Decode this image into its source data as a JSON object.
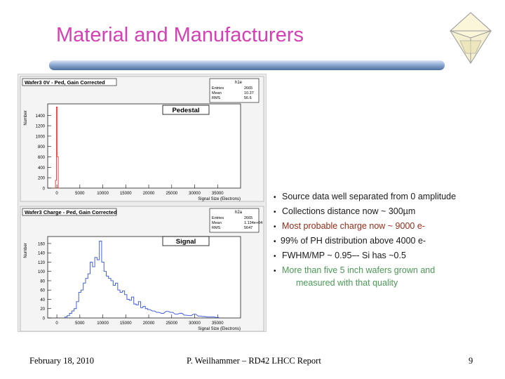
{
  "slide": {
    "title": "Material and Manufacturers",
    "bullets": [
      {
        "text": "Source data well separated from 0 amplitude",
        "color": "#1a1a1a"
      },
      {
        "text": "Collections distance now ~ 300µm",
        "color": "#1a1a1a"
      },
      {
        "text": "Most probable charge now ~ 9000 e-",
        "color": "#9a2a16"
      },
      {
        "text": "99% of PH distribution above 4000 e-",
        "color": "#1a1a1a"
      },
      {
        "text": "FWHM/MP ~ 0.95–- Si has ~0.5",
        "color": "#1a1a1a"
      },
      {
        "text": "More than five 5 inch wafers grown and",
        "text2": "measured with that quality",
        "color": "#4a9a55"
      }
    ],
    "footer": {
      "date": "February 18, 2010",
      "center": "P. Weilhammer – RD42 LHCC Report",
      "page": "9"
    }
  },
  "chart_data": [
    {
      "type": "bar",
      "title": "Wafer3 0V - Ped, Gain Corrected",
      "annotation": "Pedestal",
      "xlabel": "Signal Size (Electrons)",
      "ylabel": "Number",
      "xlim": [
        -2000,
        40000
      ],
      "ylim": [
        0,
        1620
      ],
      "xticks": [
        0,
        5000,
        10000,
        15000,
        20000,
        25000,
        30000,
        35000
      ],
      "yticks": [
        0,
        200,
        400,
        600,
        800,
        1000,
        1200,
        1400
      ],
      "stats": {
        "name": "h1e",
        "labels": [
          "Entries",
          "Mean",
          "RMS"
        ],
        "values": [
          "2665",
          "10.37",
          "56.6"
        ]
      },
      "series": [
        {
          "color": "#e03030",
          "x": [
            -400,
            -200,
            0,
            200,
            400
          ],
          "y": [
            0,
            150,
            1560,
            600,
            0
          ]
        }
      ]
    },
    {
      "type": "bar",
      "title": "Wafer3 Charge - Ped, Gain Corrected",
      "annotation": "Signal",
      "xlabel": "Signal Size (Electrons)",
      "ylabel": "Number",
      "xlim": [
        -2000,
        40000
      ],
      "ylim": [
        0,
        175
      ],
      "xticks": [
        0,
        5000,
        10000,
        15000,
        20000,
        25000,
        30000,
        35000
      ],
      "yticks": [
        0,
        20,
        40,
        60,
        80,
        100,
        120,
        140,
        160
      ],
      "stats": {
        "name": "h2a",
        "labels": [
          "Entries",
          "Mean",
          "RMS"
        ],
        "values": [
          "2665",
          "1.134e+04",
          "5647"
        ]
      },
      "series": [
        {
          "color": "#3050e0",
          "x": [
            2000,
            2500,
            3000,
            3500,
            4000,
            4500,
            5000,
            5500,
            6000,
            6500,
            7000,
            7500,
            8000,
            8500,
            9000,
            9500,
            10000,
            10500,
            11000,
            11500,
            12000,
            12500,
            13000,
            13500,
            14000,
            14500,
            15000,
            15500,
            16000,
            16500,
            17000,
            17500,
            18000,
            18500,
            19000,
            19500,
            20000,
            21000,
            22000,
            23000,
            24000,
            25000,
            26000,
            27000,
            28000,
            29000,
            30000,
            31000,
            32000,
            33000,
            34000,
            35000
          ],
          "y": [
            2,
            5,
            10,
            15,
            20,
            35,
            55,
            60,
            75,
            85,
            95,
            120,
            110,
            130,
            125,
            165,
            120,
            100,
            90,
            85,
            80,
            70,
            75,
            60,
            55,
            58,
            50,
            40,
            38,
            45,
            30,
            28,
            35,
            22,
            25,
            20,
            18,
            15,
            12,
            10,
            14,
            12,
            8,
            10,
            6,
            5,
            8,
            4,
            3,
            2,
            2,
            1
          ]
        }
      ]
    }
  ]
}
